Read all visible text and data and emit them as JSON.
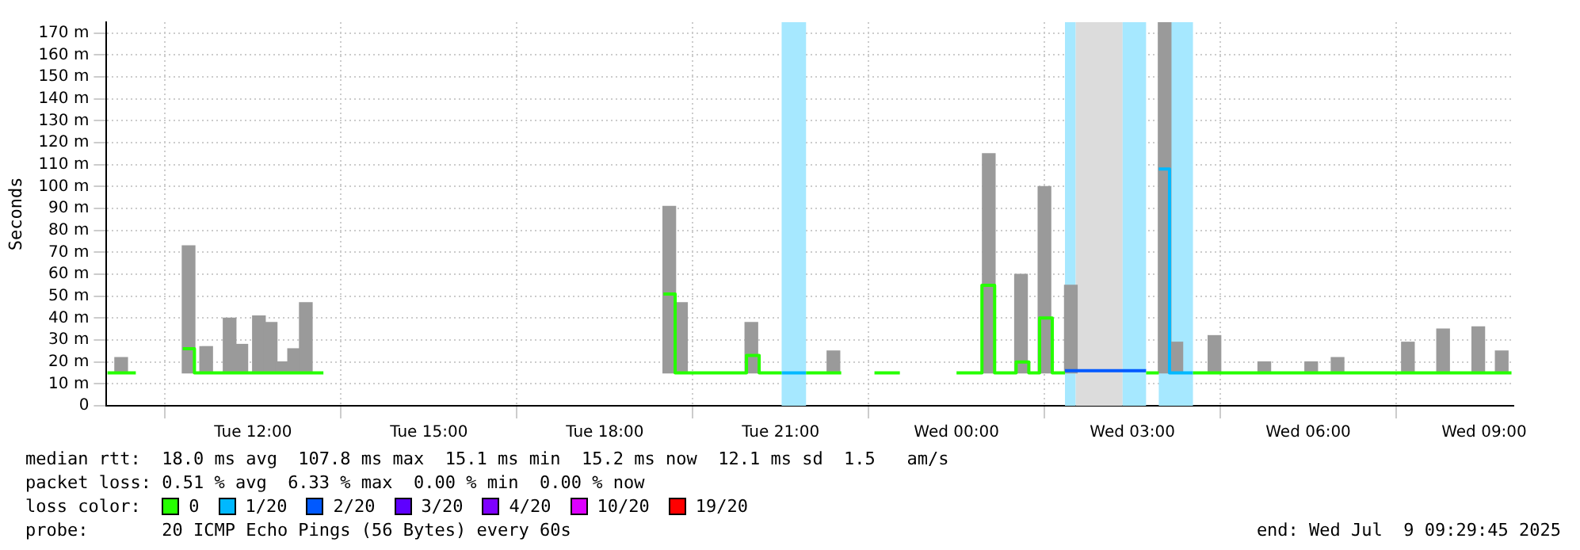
{
  "chart_data": {
    "type": "line",
    "ylabel": "Seconds",
    "xlim": [
      "2025-07-08T09:30",
      "2025-07-09T09:30"
    ],
    "xticks": [
      {
        "value": "2025-07-08T12:00",
        "label": "Tue 12:00"
      },
      {
        "value": "2025-07-08T15:00",
        "label": "Tue 15:00"
      },
      {
        "value": "2025-07-08T18:00",
        "label": "Tue 18:00"
      },
      {
        "value": "2025-07-08T21:00",
        "label": "Tue 21:00"
      },
      {
        "value": "2025-07-09T00:00",
        "label": "Wed 00:00"
      },
      {
        "value": "2025-07-09T03:00",
        "label": "Wed 03:00"
      },
      {
        "value": "2025-07-09T06:00",
        "label": "Wed 06:00"
      },
      {
        "value": "2025-07-09T09:00",
        "label": "Wed 09:00"
      }
    ],
    "ylim": [
      0,
      175
    ],
    "yticks": [
      0,
      {
        "value": 10,
        "label": "10 m"
      },
      {
        "value": 20,
        "label": "20 m"
      },
      {
        "value": 30,
        "label": "30 m"
      },
      {
        "value": 40,
        "label": "40 m"
      },
      {
        "value": 50,
        "label": "50 m"
      },
      {
        "value": 60,
        "label": "60 m"
      },
      {
        "value": 70,
        "label": "70 m"
      },
      {
        "value": 80,
        "label": "80 m"
      },
      {
        "value": 90,
        "label": "90 m"
      },
      {
        "value": 100,
        "label": "100 m"
      },
      {
        "value": 110,
        "label": "110 m"
      },
      {
        "value": 120,
        "label": "120 m"
      },
      {
        "value": 130,
        "label": "130 m"
      },
      {
        "value": 140,
        "label": "140 m"
      },
      {
        "value": 150,
        "label": "150 m"
      },
      {
        "value": 160,
        "label": "160 m"
      },
      {
        "value": 170,
        "label": "170 m"
      }
    ],
    "grid": true,
    "legend": "bottom",
    "legend_title": "loss color:",
    "bands": [
      {
        "axis": "x",
        "from": "2025-07-08T21:01",
        "to": "2025-07-08T21:26",
        "color": "#a6e8ff"
      },
      {
        "axis": "x",
        "from": "2025-07-09T01:51",
        "to": "2025-07-09T02:02",
        "color": "#a6e8ff"
      },
      {
        "axis": "x",
        "from": "2025-07-09T02:02",
        "to": "2025-07-09T02:50",
        "color": "#dcdcdc"
      },
      {
        "axis": "x",
        "from": "2025-07-09T02:50",
        "to": "2025-07-09T03:14",
        "color": "#a6e8ff"
      },
      {
        "axis": "x",
        "from": "2025-07-09T03:27",
        "to": "2025-07-09T04:02",
        "color": "#a6e8ff"
      }
    ],
    "series": [
      {
        "type": "bar",
        "color": "#9a9a9a",
        "x": [
          "2025-07-08T09:45",
          "2025-07-08T10:54",
          "2025-07-08T11:12",
          "2025-07-08T11:36",
          "2025-07-08T11:48",
          "2025-07-08T12:06",
          "2025-07-08T12:18",
          "2025-07-08T12:30",
          "2025-07-08T12:42",
          "2025-07-08T12:54",
          "2025-07-08T19:06",
          "2025-07-08T19:18",
          "2025-07-08T20:30",
          "2025-07-08T21:54",
          "2025-07-09T00:33",
          "2025-07-09T01:06",
          "2025-07-09T01:30",
          "2025-07-09T01:57",
          "2025-07-09T03:33",
          "2025-07-09T03:45",
          "2025-07-09T04:24",
          "2025-07-09T05:15",
          "2025-07-09T06:03",
          "2025-07-09T06:30",
          "2025-07-09T07:42",
          "2025-07-09T08:18",
          "2025-07-09T08:54",
          "2025-07-09T09:18"
        ],
        "base": [
          15,
          15,
          15,
          15,
          15,
          15,
          15,
          15,
          15,
          15,
          15,
          15,
          15,
          15,
          15,
          15,
          15,
          15,
          15,
          15,
          15,
          15,
          15,
          15,
          15,
          15,
          15,
          15
        ],
        "values": [
          7,
          58,
          12,
          25,
          13,
          26,
          23,
          5,
          11,
          32,
          76,
          32,
          23,
          10,
          100,
          45,
          85,
          40,
          160,
          14,
          17,
          5,
          5,
          7,
          14,
          20,
          21,
          10
        ]
      },
      {
        "name": "0",
        "color": "#26ff00",
        "x": [
          "2025-07-08T09:31",
          "2025-07-08T10:00"
        ],
        "values": [
          15,
          15
        ]
      },
      {
        "color": "#26ff00",
        "x": [
          "2025-07-08T10:48",
          "2025-07-08T11:00",
          "2025-07-08T11:00",
          "2025-07-08T13:12"
        ],
        "values": [
          26,
          26,
          15,
          15
        ]
      },
      {
        "color": "#26ff00",
        "x": [
          "2025-07-08T19:00",
          "2025-07-08T19:12",
          "2025-07-08T19:12",
          "2025-07-08T20:25",
          "2025-07-08T20:25",
          "2025-07-08T20:38",
          "2025-07-08T20:38",
          "2025-07-08T21:01"
        ],
        "values": [
          51,
          51,
          15,
          15,
          23,
          23,
          15,
          15
        ]
      },
      {
        "color": "#26ff00",
        "x": [
          "2025-07-08T21:26",
          "2025-07-08T22:02"
        ],
        "values": [
          15,
          15
        ]
      },
      {
        "color": "#26ff00",
        "x": [
          "2025-07-08T22:36",
          "2025-07-08T23:02"
        ],
        "values": [
          15,
          15
        ]
      },
      {
        "color": "#26ff00",
        "x": [
          "2025-07-09T00:00",
          "2025-07-09T00:26",
          "2025-07-09T00:26",
          "2025-07-09T00:39",
          "2025-07-09T00:39",
          "2025-07-09T01:01",
          "2025-07-09T01:01",
          "2025-07-09T01:14",
          "2025-07-09T01:14",
          "2025-07-09T01:25",
          "2025-07-09T01:25",
          "2025-07-09T01:38",
          "2025-07-09T01:38",
          "2025-07-09T01:51"
        ],
        "values": [
          15,
          15,
          55,
          55,
          15,
          15,
          20,
          20,
          15,
          15,
          40,
          40,
          15,
          15
        ]
      },
      {
        "color": "#26ff00",
        "x": [
          "2025-07-09T03:14",
          "2025-07-09T03:27"
        ],
        "values": [
          15,
          15
        ]
      },
      {
        "color": "#26ff00",
        "x": [
          "2025-07-09T04:02",
          "2025-07-09T09:28"
        ],
        "values": [
          15,
          15
        ]
      },
      {
        "name": "1/20",
        "color": "#00b8ff",
        "x": [
          "2025-07-08T21:01",
          "2025-07-08T21:26"
        ],
        "values": [
          15,
          15
        ]
      },
      {
        "color": "#00b8ff",
        "x": [
          "2025-07-09T03:27",
          "2025-07-09T03:38",
          "2025-07-09T03:38",
          "2025-07-09T04:02"
        ],
        "values": [
          108,
          108,
          15,
          15
        ]
      },
      {
        "name": "2/20",
        "color": "#0059ff",
        "x": [
          "2025-07-09T01:51",
          "2025-07-09T03:14"
        ],
        "values": [
          16,
          16
        ]
      },
      {
        "name": "3/20",
        "color": "#5e00ff"
      },
      {
        "name": "4/20",
        "color": "#7e00ff"
      },
      {
        "name": "10/20",
        "color": "#dd00ff"
      },
      {
        "name": "19/20",
        "color": "#ff0000"
      }
    ],
    "annotations": [
      "median rtt:  18.0 ms avg  107.8 ms max  15.1 ms min  15.2 ms now  12.1 ms sd  1.5   am/s",
      "packet loss: 0.51 % avg  6.33 % max  0.00 % min  0.00 % now",
      "probe:       20 ICMP Echo Pings (56 Bytes) every 60s",
      "end: Wed Jul  9 09:29:45 2025"
    ]
  }
}
